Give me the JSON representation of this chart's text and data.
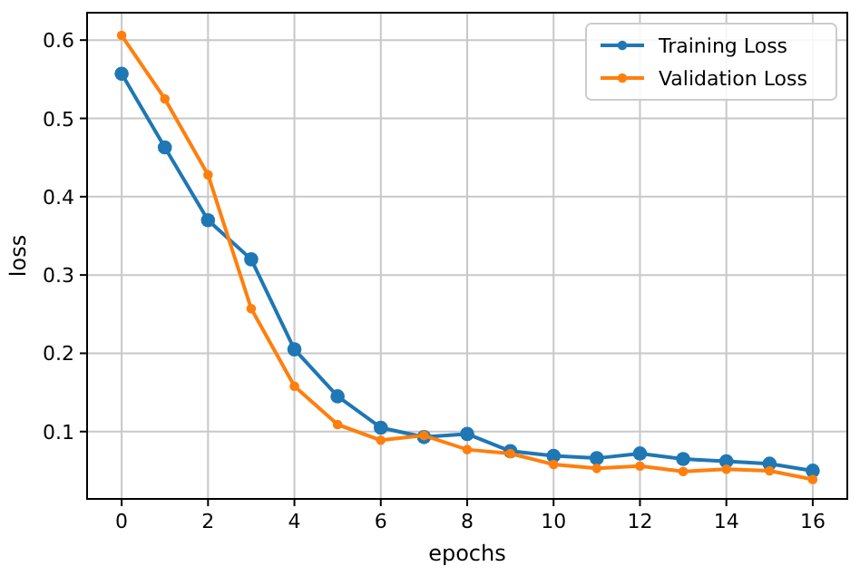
{
  "chart_data": {
    "type": "line",
    "xlabel": "epochs",
    "ylabel": "loss",
    "x": [
      0,
      1,
      2,
      3,
      4,
      5,
      6,
      7,
      8,
      9,
      10,
      11,
      12,
      13,
      14,
      15,
      16
    ],
    "series": [
      {
        "name": "Training Loss",
        "color": "#1f77b4",
        "values": [
          0.557,
          0.463,
          0.37,
          0.32,
          0.205,
          0.145,
          0.105,
          0.093,
          0.097,
          0.075,
          0.069,
          0.066,
          0.072,
          0.065,
          0.062,
          0.059,
          0.05
        ]
      },
      {
        "name": "Validation Loss",
        "color": "#ff7f0e",
        "values": [
          0.606,
          0.525,
          0.428,
          0.257,
          0.158,
          0.109,
          0.089,
          0.095,
          0.077,
          0.072,
          0.058,
          0.053,
          0.056,
          0.049,
          0.052,
          0.05,
          0.039
        ]
      }
    ],
    "xlim": [
      -0.8,
      16.8
    ],
    "ylim": [
      0.014,
      0.635
    ],
    "xticks": [
      0,
      2,
      4,
      6,
      8,
      10,
      12,
      14,
      16
    ],
    "yticks": [
      0.1,
      0.2,
      0.3,
      0.4,
      0.5,
      0.6
    ],
    "grid": true,
    "legend": "top right",
    "marker": "circle",
    "line_style": "solid"
  }
}
